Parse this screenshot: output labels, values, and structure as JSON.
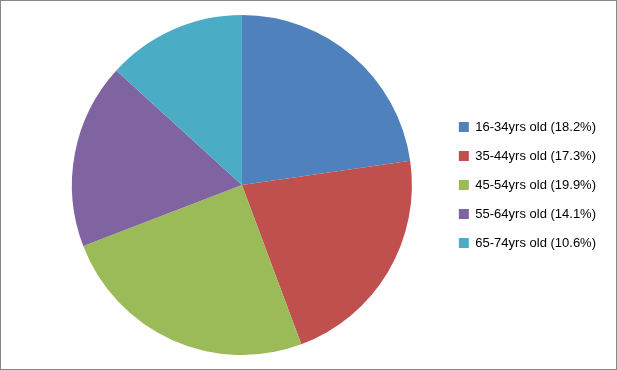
{
  "chart_data": {
    "type": "pie",
    "categories": [
      "16-34yrs old (18.2%)",
      "35-44yrs old (17.3%)",
      "45-54yrs old (19.9%)",
      "55-64yrs old (14.1%)",
      "65-74yrs old (10.6%)"
    ],
    "values": [
      18.2,
      17.3,
      19.9,
      14.1,
      10.6
    ],
    "colors": [
      "#4f81bd",
      "#c0504d",
      "#9bbb59",
      "#8064a2",
      "#4bacc6"
    ],
    "legend": "right"
  }
}
